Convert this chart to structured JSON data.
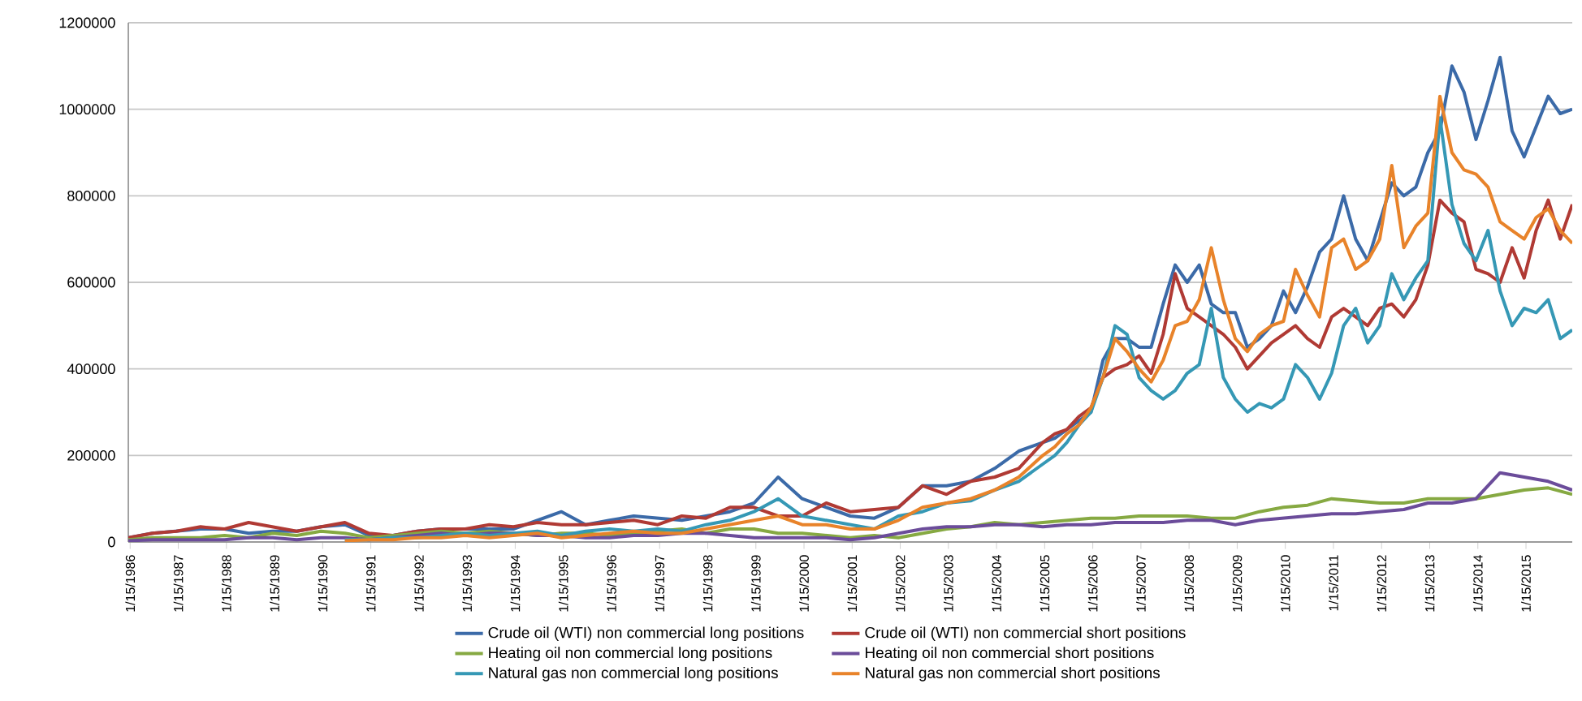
{
  "chart_data": {
    "type": "line",
    "x": [
      "1986-01",
      "1986-07",
      "1987-01",
      "1987-07",
      "1988-01",
      "1988-07",
      "1989-01",
      "1989-07",
      "1990-01",
      "1990-07",
      "1991-01",
      "1991-07",
      "1992-01",
      "1992-07",
      "1993-01",
      "1993-07",
      "1994-01",
      "1994-07",
      "1995-01",
      "1995-07",
      "1996-01",
      "1996-07",
      "1997-01",
      "1997-07",
      "1998-01",
      "1998-07",
      "1999-01",
      "1999-07",
      "2000-01",
      "2000-07",
      "2001-01",
      "2001-07",
      "2002-01",
      "2002-07",
      "2003-01",
      "2003-07",
      "2004-01",
      "2004-07",
      "2005-01",
      "2005-04",
      "2005-07",
      "2005-10",
      "2006-01",
      "2006-04",
      "2006-07",
      "2006-10",
      "2007-01",
      "2007-04",
      "2007-07",
      "2007-10",
      "2008-01",
      "2008-04",
      "2008-07",
      "2008-10",
      "2009-01",
      "2009-04",
      "2009-07",
      "2009-10",
      "2010-01",
      "2010-04",
      "2010-07",
      "2010-10",
      "2011-01",
      "2011-04",
      "2011-07",
      "2011-10",
      "2012-01",
      "2012-04",
      "2012-07",
      "2012-10",
      "2013-01",
      "2013-04",
      "2013-07",
      "2013-10",
      "2014-01",
      "2014-04",
      "2014-07",
      "2014-10",
      "2015-01",
      "2015-04",
      "2015-07",
      "2015-10",
      "2016-01"
    ],
    "series": [
      {
        "name": "Crude oil (WTI) non commercial long positions",
        "color": "#3b6aa8",
        "values": [
          10000,
          20000,
          25000,
          30000,
          30000,
          20000,
          25000,
          25000,
          35000,
          40000,
          15000,
          15000,
          25000,
          30000,
          30000,
          30000,
          30000,
          50000,
          70000,
          40000,
          50000,
          60000,
          55000,
          50000,
          60000,
          70000,
          90000,
          150000,
          100000,
          80000,
          60000,
          55000,
          80000,
          130000,
          130000,
          140000,
          170000,
          210000,
          230000,
          240000,
          260000,
          280000,
          300000,
          420000,
          470000,
          470000,
          450000,
          450000,
          550000,
          640000,
          600000,
          640000,
          550000,
          530000,
          530000,
          450000,
          470000,
          500000,
          580000,
          530000,
          590000,
          670000,
          700000,
          800000,
          700000,
          650000,
          740000,
          830000,
          800000,
          820000,
          900000,
          950000,
          1100000,
          1040000,
          930000,
          1020000,
          1120000,
          950000,
          890000,
          960000,
          1030000,
          990000,
          1000000
        ]
      },
      {
        "name": "Crude oil (WTI) non commercial short positions",
        "color": "#b03a34",
        "values": [
          10000,
          20000,
          25000,
          35000,
          30000,
          45000,
          35000,
          25000,
          35000,
          45000,
          20000,
          15000,
          25000,
          30000,
          30000,
          40000,
          35000,
          45000,
          40000,
          40000,
          45000,
          50000,
          40000,
          60000,
          55000,
          80000,
          80000,
          60000,
          60000,
          90000,
          70000,
          75000,
          80000,
          130000,
          110000,
          140000,
          150000,
          170000,
          230000,
          250000,
          260000,
          290000,
          310000,
          380000,
          400000,
          410000,
          430000,
          390000,
          480000,
          620000,
          540000,
          520000,
          500000,
          480000,
          450000,
          400000,
          430000,
          460000,
          480000,
          500000,
          470000,
          450000,
          520000,
          540000,
          520000,
          500000,
          540000,
          550000,
          520000,
          560000,
          640000,
          790000,
          760000,
          740000,
          630000,
          620000,
          600000,
          680000,
          610000,
          720000,
          790000,
          700000,
          780000
        ]
      },
      {
        "name": "Heating oil non commercial long positions",
        "color": "#86a942",
        "x": [
          "1986-01",
          "1986-07",
          "1987-01",
          "1987-07",
          "1988-01",
          "1988-07",
          "1989-01",
          "1989-07",
          "1990-01",
          "1990-07",
          "1991-01",
          "1991-07",
          "1992-01",
          "1992-07",
          "1993-01",
          "1993-07",
          "1994-01",
          "1994-07",
          "1995-01",
          "1995-07",
          "1996-01",
          "1996-07",
          "1997-01",
          "1997-07",
          "1998-01",
          "1998-07",
          "1999-01",
          "1999-07",
          "2000-01",
          "2000-07",
          "2001-01",
          "2001-07",
          "2002-01",
          "2002-07",
          "2003-01",
          "2003-07",
          "2004-01",
          "2004-07",
          "2005-01",
          "2005-07",
          "2006-01",
          "2006-07",
          "2007-01",
          "2007-07",
          "2008-01",
          "2008-07",
          "2009-01",
          "2009-07",
          "2010-01",
          "2010-07",
          "2011-01",
          "2011-07",
          "2012-01",
          "2012-07",
          "2013-01",
          "2013-07",
          "2014-01",
          "2014-07",
          "2015-01",
          "2015-07",
          "2016-01"
        ],
        "values": [
          5000,
          10000,
          10000,
          10000,
          15000,
          10000,
          20000,
          15000,
          25000,
          20000,
          10000,
          15000,
          20000,
          25000,
          20000,
          25000,
          20000,
          15000,
          20000,
          20000,
          15000,
          20000,
          25000,
          30000,
          20000,
          30000,
          30000,
          20000,
          20000,
          15000,
          10000,
          15000,
          10000,
          20000,
          30000,
          35000,
          45000,
          40000,
          45000,
          50000,
          55000,
          55000,
          60000,
          60000,
          60000,
          55000,
          55000,
          70000,
          80000,
          85000,
          100000,
          95000,
          90000,
          90000,
          100000,
          100000,
          100000,
          110000,
          120000,
          125000,
          110000
        ]
      },
      {
        "name": "Heating oil non commercial short positions",
        "color": "#6b4c9a",
        "x": [
          "1986-01",
          "1986-07",
          "1987-01",
          "1987-07",
          "1988-01",
          "1988-07",
          "1989-01",
          "1989-07",
          "1990-01",
          "1990-07",
          "1991-01",
          "1991-07",
          "1992-01",
          "1992-07",
          "1993-01",
          "1993-07",
          "1994-01",
          "1994-07",
          "1995-01",
          "1995-07",
          "1996-01",
          "1996-07",
          "1997-01",
          "1997-07",
          "1998-01",
          "1998-07",
          "1999-01",
          "1999-07",
          "2000-01",
          "2000-07",
          "2001-01",
          "2001-07",
          "2002-01",
          "2002-07",
          "2003-01",
          "2003-07",
          "2004-01",
          "2004-07",
          "2005-01",
          "2005-07",
          "2006-01",
          "2006-07",
          "2007-01",
          "2007-07",
          "2008-01",
          "2008-07",
          "2009-01",
          "2009-07",
          "2010-01",
          "2010-07",
          "2011-01",
          "2011-07",
          "2012-01",
          "2012-07",
          "2013-01",
          "2013-07",
          "2014-01",
          "2014-07",
          "2015-01",
          "2015-07",
          "2016-01"
        ],
        "values": [
          3000,
          5000,
          5000,
          5000,
          5000,
          10000,
          10000,
          5000,
          10000,
          10000,
          5000,
          10000,
          15000,
          20000,
          15000,
          20000,
          20000,
          15000,
          15000,
          10000,
          10000,
          15000,
          15000,
          20000,
          20000,
          15000,
          10000,
          10000,
          10000,
          10000,
          5000,
          10000,
          20000,
          30000,
          35000,
          35000,
          40000,
          40000,
          35000,
          40000,
          40000,
          45000,
          45000,
          45000,
          50000,
          50000,
          40000,
          50000,
          55000,
          60000,
          65000,
          65000,
          70000,
          75000,
          90000,
          90000,
          100000,
          160000,
          150000,
          140000,
          120000
        ]
      },
      {
        "name": "Natural gas non commercial long positions",
        "color": "#3598b5",
        "values": [
          null,
          null,
          null,
          null,
          null,
          null,
          null,
          null,
          null,
          5000,
          5000,
          10000,
          10000,
          15000,
          20000,
          15000,
          20000,
          25000,
          15000,
          25000,
          30000,
          25000,
          30000,
          25000,
          40000,
          50000,
          70000,
          100000,
          60000,
          50000,
          40000,
          30000,
          60000,
          70000,
          90000,
          95000,
          120000,
          140000,
          180000,
          200000,
          230000,
          270000,
          300000,
          380000,
          500000,
          480000,
          380000,
          350000,
          330000,
          350000,
          390000,
          410000,
          540000,
          380000,
          330000,
          300000,
          320000,
          310000,
          330000,
          410000,
          380000,
          330000,
          390000,
          500000,
          540000,
          460000,
          500000,
          620000,
          560000,
          610000,
          650000,
          980000,
          780000,
          690000,
          650000,
          720000,
          580000,
          500000,
          540000,
          530000,
          560000,
          470000,
          490000
        ]
      },
      {
        "name": "Natural gas non commercial short positions",
        "color": "#e8832a",
        "values": [
          null,
          null,
          null,
          null,
          null,
          null,
          null,
          null,
          null,
          3000,
          5000,
          5000,
          10000,
          10000,
          15000,
          10000,
          15000,
          20000,
          10000,
          15000,
          20000,
          25000,
          20000,
          20000,
          30000,
          40000,
          50000,
          60000,
          40000,
          40000,
          30000,
          30000,
          50000,
          80000,
          90000,
          100000,
          120000,
          150000,
          200000,
          220000,
          250000,
          270000,
          310000,
          380000,
          470000,
          440000,
          400000,
          370000,
          420000,
          500000,
          510000,
          560000,
          680000,
          560000,
          470000,
          440000,
          480000,
          500000,
          510000,
          630000,
          570000,
          520000,
          680000,
          700000,
          630000,
          650000,
          700000,
          870000,
          680000,
          730000,
          760000,
          1030000,
          900000,
          860000,
          850000,
          820000,
          740000,
          720000,
          700000,
          750000,
          770000,
          720000,
          690000
        ]
      }
    ],
    "xlim": [
      "1986-01",
      "2016-01"
    ],
    "xticks": [
      {
        "value": "1986-01-15",
        "label": "1/15/1986"
      },
      {
        "value": "1987-01-15",
        "label": "1/15/1987"
      },
      {
        "value": "1988-01-15",
        "label": "1/15/1988"
      },
      {
        "value": "1989-01-15",
        "label": "1/15/1989"
      },
      {
        "value": "1990-01-15",
        "label": "1/15/1990"
      },
      {
        "value": "1991-01-15",
        "label": "1/15/1991"
      },
      {
        "value": "1992-01-15",
        "label": "1/15/1992"
      },
      {
        "value": "1993-01-15",
        "label": "1/15/1993"
      },
      {
        "value": "1994-01-15",
        "label": "1/15/1994"
      },
      {
        "value": "1995-01-15",
        "label": "1/15/1995"
      },
      {
        "value": "1996-01-15",
        "label": "1/15/1996"
      },
      {
        "value": "1997-01-15",
        "label": "1/15/1997"
      },
      {
        "value": "1998-01-15",
        "label": "1/15/1998"
      },
      {
        "value": "1999-01-15",
        "label": "1/15/1999"
      },
      {
        "value": "2000-01-15",
        "label": "1/15/2000"
      },
      {
        "value": "2001-01-15",
        "label": "1/15/2001"
      },
      {
        "value": "2002-01-15",
        "label": "1/15/2002"
      },
      {
        "value": "2003-01-15",
        "label": "1/15/2003"
      },
      {
        "value": "2004-01-15",
        "label": "1/15/2004"
      },
      {
        "value": "2005-01-15",
        "label": "1/15/2005"
      },
      {
        "value": "2006-01-15",
        "label": "1/15/2006"
      },
      {
        "value": "2007-01-15",
        "label": "1/15/2007"
      },
      {
        "value": "2008-01-15",
        "label": "1/15/2008"
      },
      {
        "value": "2009-01-15",
        "label": "1/15/2009"
      },
      {
        "value": "2010-01-15",
        "label": "1/15/2010"
      },
      {
        "value": "2011-01-15",
        "label": "1/15/2011"
      },
      {
        "value": "2012-01-15",
        "label": "1/15/2012"
      },
      {
        "value": "2013-01-15",
        "label": "1/15/2013"
      },
      {
        "value": "2014-01-15",
        "label": "1/15/2014"
      },
      {
        "value": "2015-01-15",
        "label": "1/15/2015"
      }
    ],
    "ylim": [
      0,
      1200000
    ],
    "yticks": [
      0,
      200000,
      400000,
      600000,
      800000,
      1000000,
      1200000
    ],
    "grid": "y",
    "legend": "bottom"
  }
}
